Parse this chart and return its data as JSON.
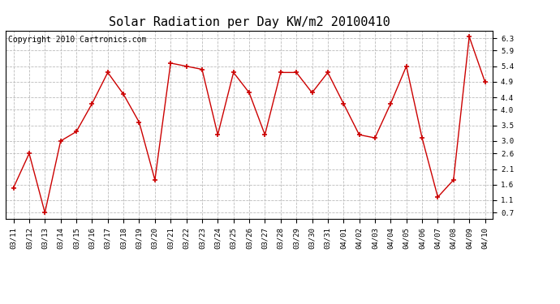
{
  "title": "Solar Radiation per Day KW/m2 20100410",
  "copyright": "Copyright 2010 Cartronics.com",
  "labels": [
    "03/11",
    "03/12",
    "03/13",
    "03/14",
    "03/15",
    "03/16",
    "03/17",
    "03/18",
    "03/19",
    "03/20",
    "03/21",
    "03/22",
    "03/23",
    "03/24",
    "03/25",
    "03/26",
    "03/27",
    "03/28",
    "03/29",
    "03/30",
    "03/31",
    "04/01",
    "04/02",
    "04/03",
    "04/04",
    "04/05",
    "04/06",
    "04/07",
    "04/08",
    "04/09",
    "04/10"
  ],
  "values": [
    1.5,
    2.6,
    0.7,
    3.0,
    3.3,
    4.2,
    5.2,
    4.5,
    3.6,
    1.75,
    5.5,
    5.4,
    5.3,
    3.2,
    5.2,
    4.55,
    3.2,
    5.2,
    5.2,
    4.55,
    5.2,
    4.2,
    3.2,
    3.1,
    4.2,
    5.4,
    3.1,
    1.2,
    1.75,
    6.35,
    4.9
  ],
  "line_color": "#cc0000",
  "marker": "+",
  "marker_color": "#cc0000",
  "bg_color": "#ffffff",
  "plot_bg_color": "#ffffff",
  "grid_color": "#bbbbbb",
  "yticks": [
    0.7,
    1.1,
    1.6,
    2.1,
    2.6,
    3.0,
    3.5,
    4.0,
    4.4,
    4.9,
    5.4,
    5.9,
    6.3
  ],
  "ylim": [
    0.5,
    6.55
  ],
  "title_fontsize": 11,
  "copyright_fontsize": 7,
  "tick_fontsize": 6.5
}
